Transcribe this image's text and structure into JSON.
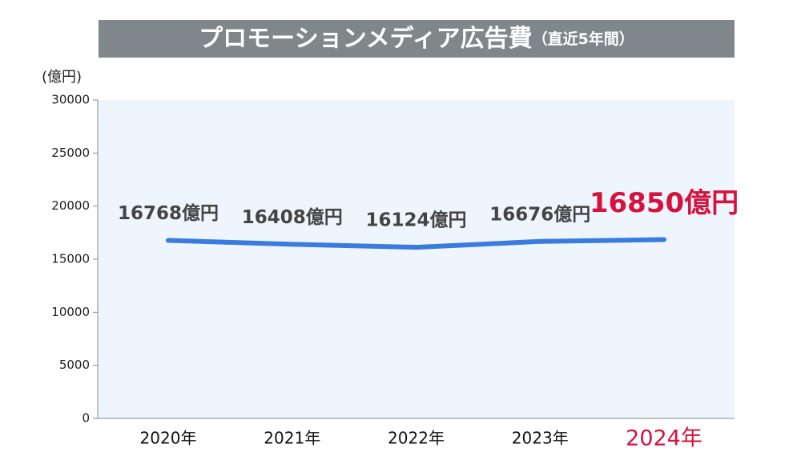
{
  "chart_data": {
    "type": "line",
    "title": "プロモーションメディア広告費",
    "subtitle": "（直近5年間）",
    "y_label": "(億円)",
    "categories": [
      "2020年",
      "2021年",
      "2022年",
      "2023年",
      "2024年"
    ],
    "series": [
      {
        "color": "#3a7be0",
        "values": [
          16768,
          16408,
          16124,
          16676,
          16850
        ],
        "value_labels": [
          "16768億円",
          "16408億円",
          "16124億円",
          "16676億円",
          "16850億円"
        ]
      }
    ],
    "label_colors": [
      "#444444",
      "#444444",
      "#444444",
      "#444444",
      "#d6123f"
    ],
    "ylim": [
      0,
      30000
    ],
    "yticks": [
      0,
      5000,
      10000,
      15000,
      20000,
      25000,
      30000
    ],
    "background": "#eef5fc"
  }
}
